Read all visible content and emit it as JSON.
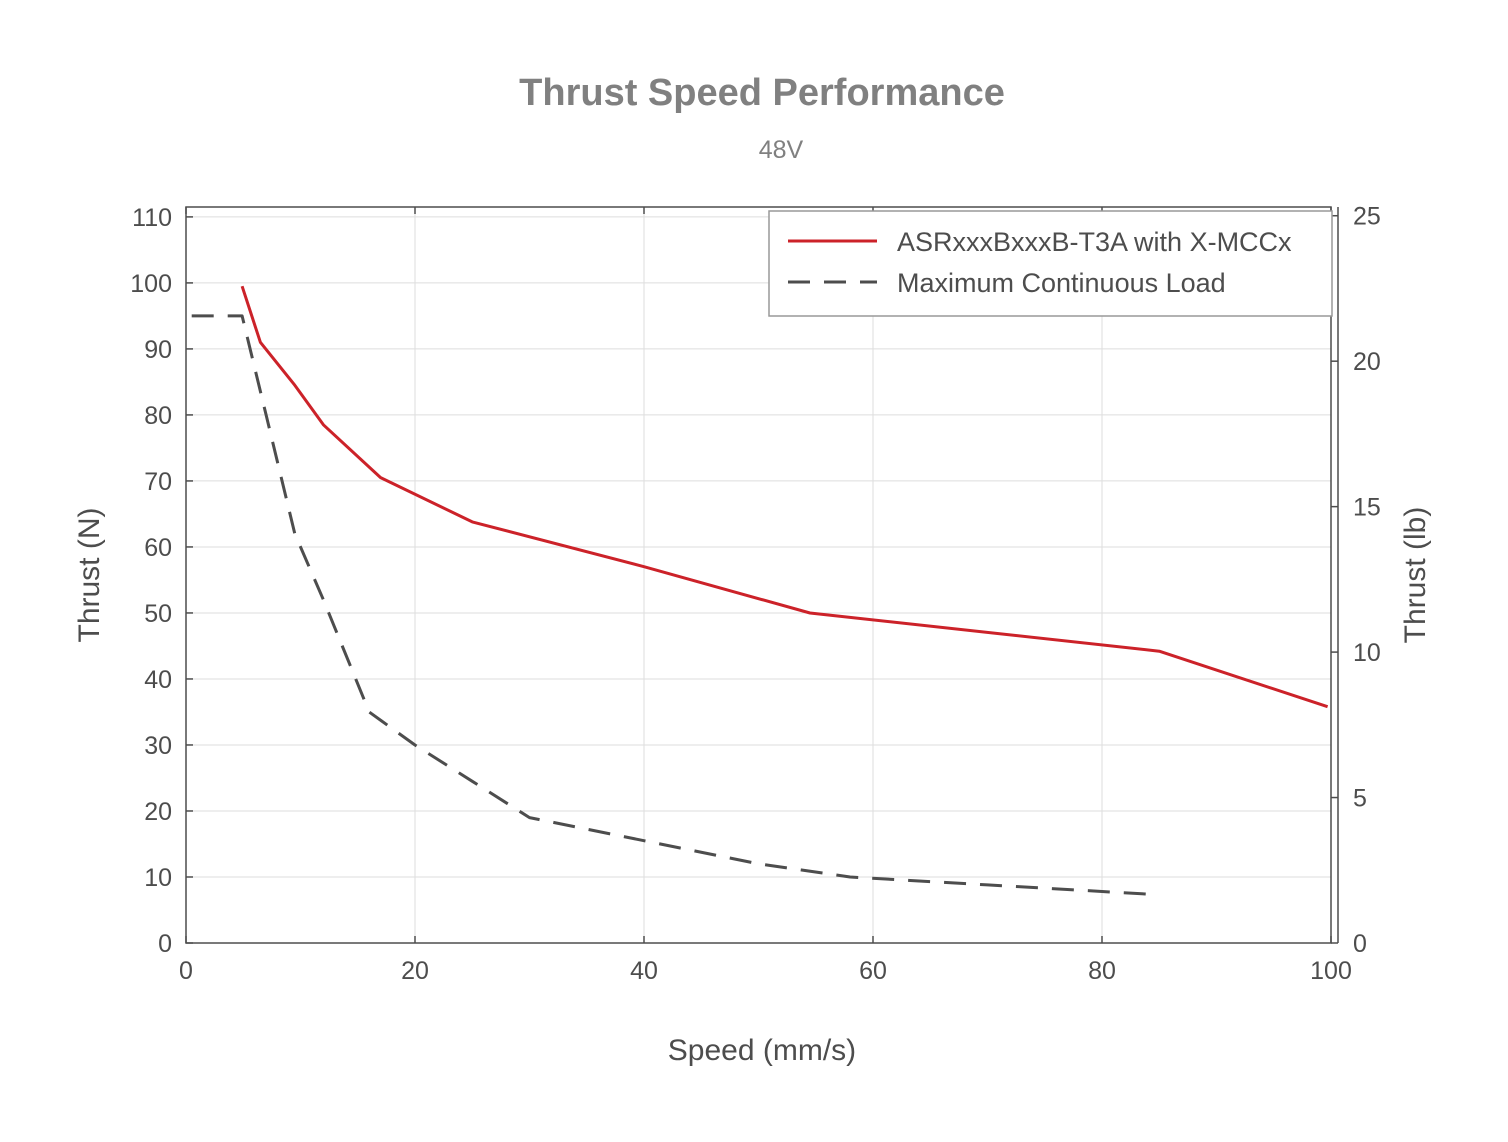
{
  "chart_data": {
    "type": "line",
    "title": "Thrust Speed Performance",
    "subtitle": "48V",
    "xlabel": "Speed (mm/s)",
    "ylabel": "Thrust (N)",
    "ylabel_right": "Thrust (lb)",
    "xlim": [
      0,
      100
    ],
    "ylim": [
      0,
      110
    ],
    "ylim_right": [
      0,
      25
    ],
    "x_ticks": [
      "0",
      "20",
      "40",
      "60",
      "80",
      "100"
    ],
    "y_ticks": [
      "0",
      "10",
      "20",
      "30",
      "40",
      "50",
      "60",
      "70",
      "80",
      "90",
      "100",
      "110"
    ],
    "y_ticks_right": [
      "0",
      "5",
      "10",
      "15",
      "20",
      "25"
    ],
    "grid": true,
    "legend_position": "top-right",
    "series": [
      {
        "name": "ASRxxxBxxxB-T3A with X-MCCx",
        "color": "#cc2229",
        "style": "solid",
        "x": [
          4.9,
          6.5,
          9.5,
          12,
          17,
          25,
          40,
          54.5,
          85,
          99.7
        ],
        "y": [
          99.5,
          91,
          84.5,
          78.5,
          70.5,
          63.8,
          57,
          50,
          44.2,
          35.8
        ]
      },
      {
        "name": "Maximum Continuous Load",
        "color": "#4d4d4d",
        "style": "dashed",
        "x": [
          0.5,
          4.9,
          7,
          9.5,
          12,
          16,
          20,
          25,
          30,
          40,
          50,
          58,
          70,
          80,
          85
        ],
        "y": [
          95,
          95,
          80,
          62,
          52,
          35,
          30,
          24.5,
          19,
          15.5,
          12,
          10,
          8.8,
          7.8,
          7.3
        ]
      }
    ]
  }
}
